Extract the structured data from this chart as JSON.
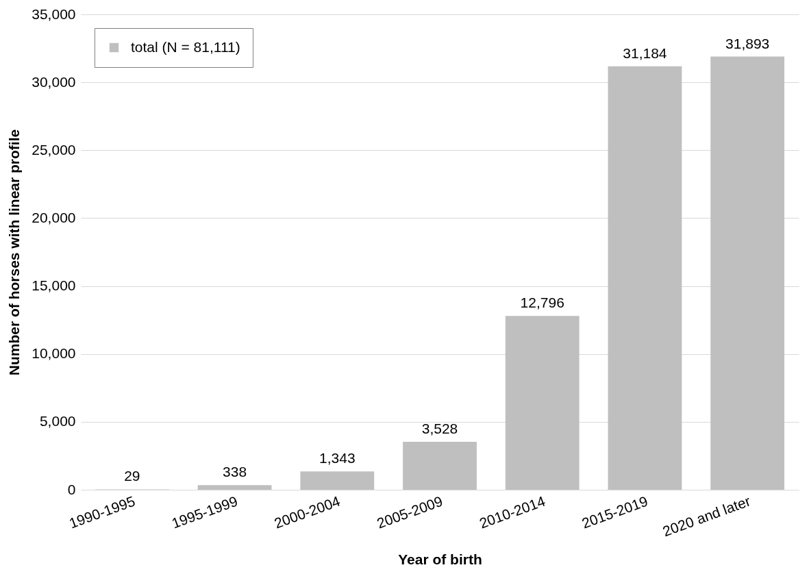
{
  "chart_data": {
    "type": "bar",
    "xlabel": "Year of birth",
    "ylabel": "Number of horses with linear profile",
    "categories": [
      "1990-1995",
      "1995-1999",
      "2000-2004",
      "2005-2009",
      "2010-2014",
      "2015-2019",
      "2020 and later"
    ],
    "series": [
      {
        "name": "total (N = 81,111)",
        "color": "#bfbfbf",
        "values": [
          29,
          338,
          1343,
          3528,
          12796,
          31184,
          31893
        ],
        "value_labels": [
          "29",
          "338",
          "1,343",
          "3,528",
          "12,796",
          "31,184",
          "31,893"
        ]
      }
    ],
    "ylim": [
      0,
      35000
    ],
    "yticks": [
      0,
      {
        "value": 5000,
        "label": "5,000"
      },
      {
        "value": 10000,
        "label": "10,000"
      },
      {
        "value": 15000,
        "label": "15,000"
      },
      {
        "value": 20000,
        "label": "20,000"
      },
      {
        "value": 25000,
        "label": "25,000"
      },
      {
        "value": 30000,
        "label": "30,000"
      },
      {
        "value": 35000,
        "label": "35,000"
      }
    ],
    "grid": "y",
    "legend": "top left"
  }
}
